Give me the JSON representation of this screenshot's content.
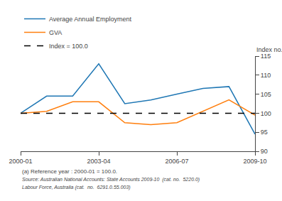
{
  "chart_data": {
    "type": "line",
    "categories": [
      "2000-01",
      null,
      null,
      "2003-04",
      null,
      null,
      "2006-07",
      null,
      null,
      "2009-10"
    ],
    "series": [
      {
        "name": "Average Annual Employment",
        "values": [
          100.0,
          104.5,
          104.5,
          113.0,
          102.5,
          103.5,
          105.0,
          106.5,
          107.0,
          94.5
        ]
      },
      {
        "name": "GVA",
        "values": [
          100.0,
          100.5,
          103.0,
          103.0,
          97.5,
          97.0,
          97.5,
          100.5,
          103.5,
          99.5
        ]
      },
      {
        "name": "Index = 100.0",
        "values": [
          100.0,
          100.0,
          100.0,
          100.0,
          100.0,
          100.0,
          100.0,
          100.0,
          100.0,
          100.0
        ],
        "color": "#000000",
        "line_style": "dashed"
      }
    ],
    "y_label": "Index no.",
    "ylim": [
      90,
      115
    ],
    "yticks": [
      90,
      95,
      100,
      105,
      110,
      115
    ],
    "grid": false,
    "legend": "upper left",
    "annotations": [
      "(a) Reference year : 2000-01 = 100.0.",
      "Source: Australian National Accounts: State Accounts 2009-10  (cat. no.  5220.0)",
      "Labour Force, Australia (cat.  no.  6291.0.55.003)"
    ]
  }
}
